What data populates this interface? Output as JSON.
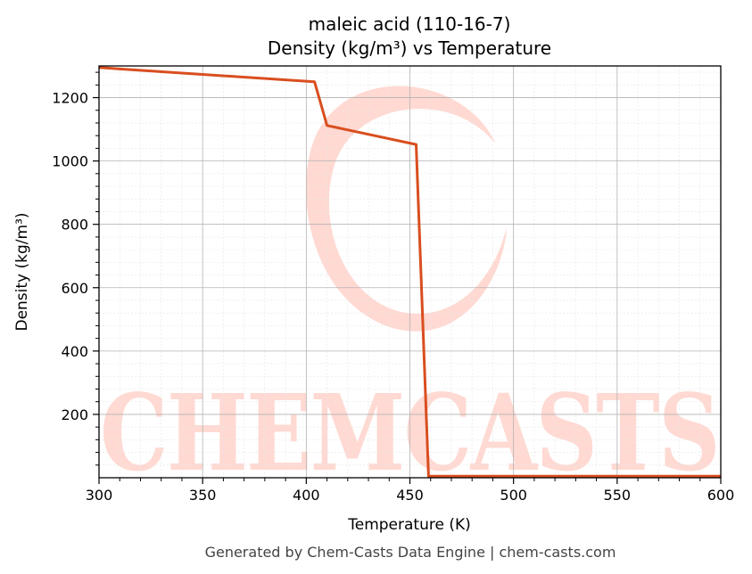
{
  "chart_data": {
    "type": "line",
    "title_line1": "maleic acid (110-16-7)",
    "title_line2": "Density (kg/m³) vs Temperature",
    "xlabel": "Temperature (K)",
    "ylabel": "Density (kg/m³)",
    "xlim": [
      300,
      600
    ],
    "ylim": [
      0,
      1300
    ],
    "x_ticks": [
      300,
      350,
      400,
      450,
      500,
      550,
      600
    ],
    "y_ticks": [
      200,
      400,
      600,
      800,
      1000,
      1200
    ],
    "grid": true,
    "series": [
      {
        "color": "#d94e1f",
        "x": [
          300,
          404,
          410,
          453,
          459,
          600
        ],
        "y": [
          1295,
          1250,
          1112,
          1052,
          5,
          5
        ]
      }
    ]
  },
  "footer": "Generated by Chem-Casts Data Engine | chem-casts.com",
  "watermark": {
    "text": "CHEMCASTS",
    "color": "#ffd9d2"
  }
}
